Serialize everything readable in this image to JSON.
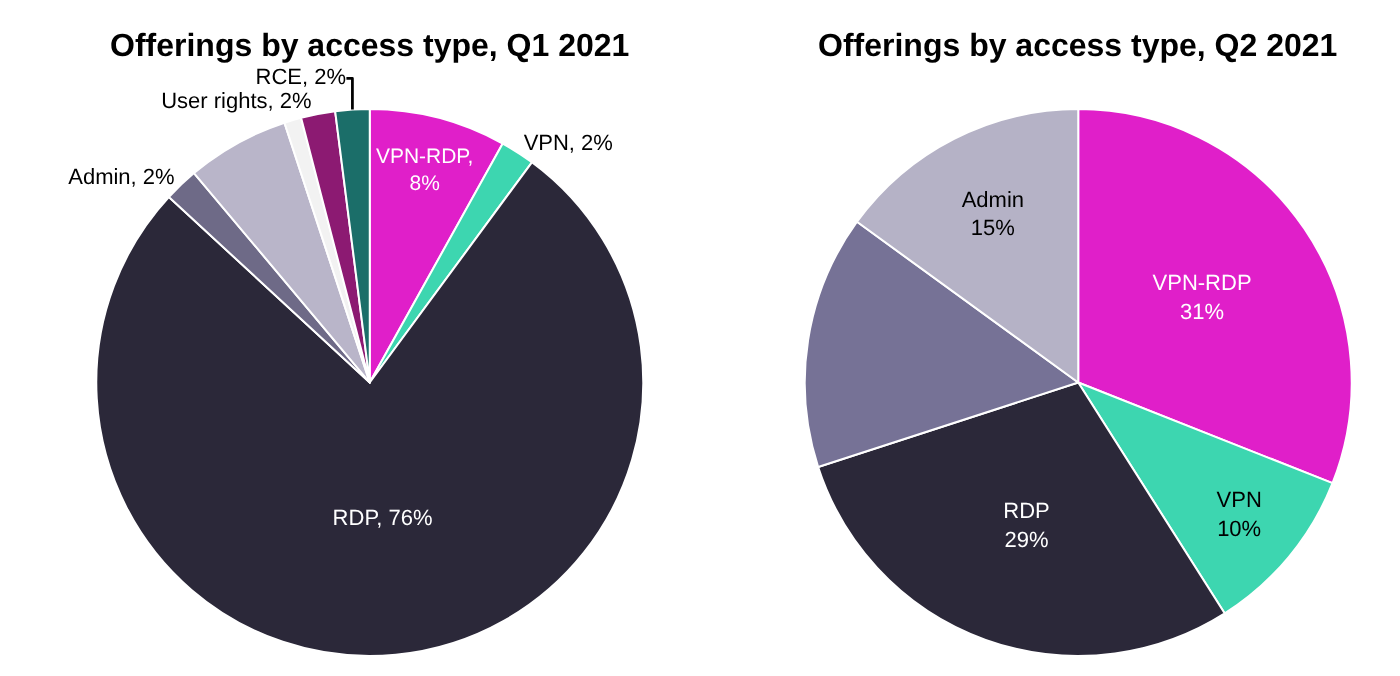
{
  "chart_data": [
    {
      "type": "pie",
      "title": "Offerings by access type, Q1 2021",
      "categories": [
        "VPN-RDP",
        "VPN",
        "RDP",
        "Admin",
        null,
        null,
        "User rights",
        "RCE"
      ],
      "values": [
        8,
        2,
        76,
        2,
        6,
        1,
        2,
        2
      ],
      "colors": [
        "#e01fc9",
        "#3dd6b0",
        "#2b2839",
        "#6e6a87",
        "#b9b5c9",
        "#f2f2f2",
        "#8c1a72",
        "#1b6e69"
      ],
      "value_labels": [
        ",\n8%",
        ", 2%",
        ", 76%",
        ", 2%",
        null,
        null,
        ", 2%",
        ", 2%"
      ]
    },
    {
      "type": "pie",
      "title": "Offerings by access type, Q2 2021",
      "categories": [
        "VPN-RDP",
        "VPN",
        "RDP",
        null,
        "Admin"
      ],
      "values": [
        31,
        10,
        29,
        15,
        15
      ],
      "colors": [
        "#e01fc9",
        "#3dd6b0",
        "#2b2839",
        "#767296",
        "#b5b2c6"
      ],
      "value_labels": [
        "\n31%",
        "\n10%",
        "\n29%",
        null,
        "\n15%"
      ]
    }
  ]
}
